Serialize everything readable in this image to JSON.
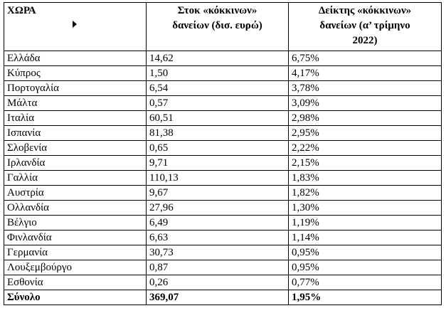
{
  "table": {
    "header": [
      [
        "ΧΩΡΑ"
      ],
      [
        "Στοκ «κόκκινων»",
        "δανείων (δισ. ευρώ)"
      ],
      [
        "Δείκτης «κόκκινων»",
        "δανείων (α’ τρίμηνο",
        "2022)"
      ]
    ],
    "rows": [
      [
        "Ελλάδα",
        "14,62",
        "6,75%"
      ],
      [
        "Κύπρος",
        "1,50",
        "4,17%"
      ],
      [
        "Πορτογαλία",
        "6,54",
        "3,78%"
      ],
      [
        "Μάλτα",
        "0,57",
        "3,09%"
      ],
      [
        "Ιταλία",
        "60,51",
        "2,98%"
      ],
      [
        "Ισπανία",
        "81,38",
        "2,95%"
      ],
      [
        "Σλοβενία",
        "0,65",
        "2,22%"
      ],
      [
        "Ιρλανδία",
        "9,71",
        "2,15%"
      ],
      [
        "Γαλλία",
        "110,13",
        "1,83%"
      ],
      [
        "Αυστρία",
        "9,67",
        "1,82%"
      ],
      [
        "Ολλανδία",
        "27,96",
        "1,30%"
      ],
      [
        "Βέλγιο",
        "6,49",
        "1,19%"
      ],
      [
        "Φινλανδία",
        "6,63",
        "1,14%"
      ],
      [
        "Γερμανία",
        "30,73",
        "0,95%"
      ],
      [
        "Λουξεμβούργο",
        "0,87",
        "0,95%"
      ],
      [
        "Εσθονία",
        "0,26",
        "0,77%"
      ]
    ],
    "total": [
      "Σύνολο",
      "369,07",
      "1,95%"
    ]
  }
}
